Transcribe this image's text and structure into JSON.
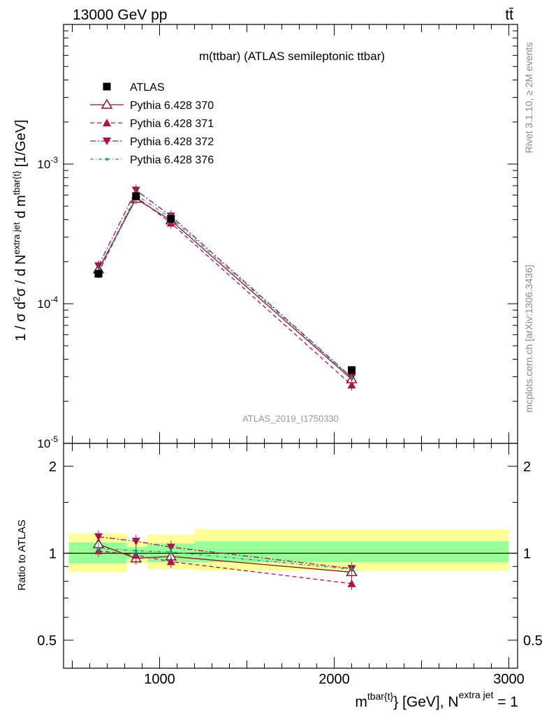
{
  "header": {
    "left": "13000 GeV pp",
    "right": "tt̄"
  },
  "side_labels": {
    "rivet": "Rivet 3.1.10, ≥ 2M events",
    "mcplots": "mcplots.cern.ch [arXiv:1306.3436]"
  },
  "colors": {
    "atlas": "#000000",
    "py370": "#7f1a2a",
    "py371": "#b0104f",
    "py372": "#a3144c",
    "py376": "#119a7c",
    "band_outer": "#ffff99",
    "band_inner": "#99ff99"
  },
  "chart_data": [
    {
      "type": "line",
      "title": "m(ttbar) (ATLAS semileptonic ttbar)",
      "watermark": "ATLAS_2019_I1750330",
      "ylabel": "1 / σ d²σ / d N^{extra jet} d m^{tbar{t}} [1/GeV]",
      "yscale": "log",
      "xlim": [
        450,
        3050
      ],
      "ylim": [
        1e-05,
        0.01
      ],
      "x": [
        650,
        865,
        1065,
        2100
      ],
      "series": [
        {
          "name": "ATLAS",
          "marker": "square",
          "values": [
            0.000164,
            0.00059,
            0.000405,
            3.35e-05
          ]
        },
        {
          "name": "Pythia 6.428 370",
          "marker": "open-triangle-up",
          "line": "solid",
          "values": [
            0.000176,
            0.000565,
            0.000395,
            2.88e-05
          ]
        },
        {
          "name": "Pythia 6.428 371",
          "marker": "triangle-up",
          "line": "dashed",
          "values": [
            0.000167,
            0.000582,
            0.000378,
            2.62e-05
          ]
        },
        {
          "name": "Pythia 6.428 372",
          "marker": "triangle-down",
          "line": "dashdot",
          "values": [
            0.000187,
            0.00065,
            0.000425,
            2.97e-05
          ]
        },
        {
          "name": "Pythia 6.428 376",
          "marker": "dot",
          "line": "dashdot",
          "values": [
            0.00017,
            0.000603,
            0.00041,
            2.95e-05
          ]
        }
      ]
    },
    {
      "type": "line",
      "ylabel": "Ratio to ATLAS",
      "xlabel": "m^{tbar{t}} [GeV], N^{extra jet} = 1",
      "yscale": "log",
      "xlim": [
        450,
        3050
      ],
      "ylim": [
        0.4,
        2.4
      ],
      "x_ticks": [
        1000,
        2000,
        3000
      ],
      "y_ticks": [
        0.5,
        1,
        2
      ],
      "x": [
        650,
        865,
        1065,
        2100
      ],
      "bands": [
        {
          "x0": 480,
          "x1": 810,
          "outer": [
            0.86,
            1.17
          ],
          "inner": [
            0.92,
            1.09
          ]
        },
        {
          "x0": 810,
          "x1": 930,
          "outer": [
            0.92,
            1.1
          ],
          "inner": [
            0.96,
            1.05
          ]
        },
        {
          "x0": 930,
          "x1": 1200,
          "outer": [
            0.88,
            1.16
          ],
          "inner": [
            0.93,
            1.08
          ]
        },
        {
          "x0": 1200,
          "x1": 3000,
          "outer": [
            0.87,
            1.21
          ],
          "inner": [
            0.93,
            1.1
          ]
        }
      ],
      "series": [
        {
          "name": "Pythia 6.428 370",
          "values": [
            1.075,
            0.96,
            0.975,
            0.86
          ]
        },
        {
          "name": "Pythia 6.428 371",
          "values": [
            1.02,
            0.985,
            0.935,
            0.785
          ]
        },
        {
          "name": "Pythia 6.428 372",
          "values": [
            1.14,
            1.1,
            1.05,
            0.885
          ]
        },
        {
          "name": "Pythia 6.428 376",
          "values": [
            1.04,
            1.02,
            1.01,
            0.88
          ]
        }
      ]
    }
  ]
}
